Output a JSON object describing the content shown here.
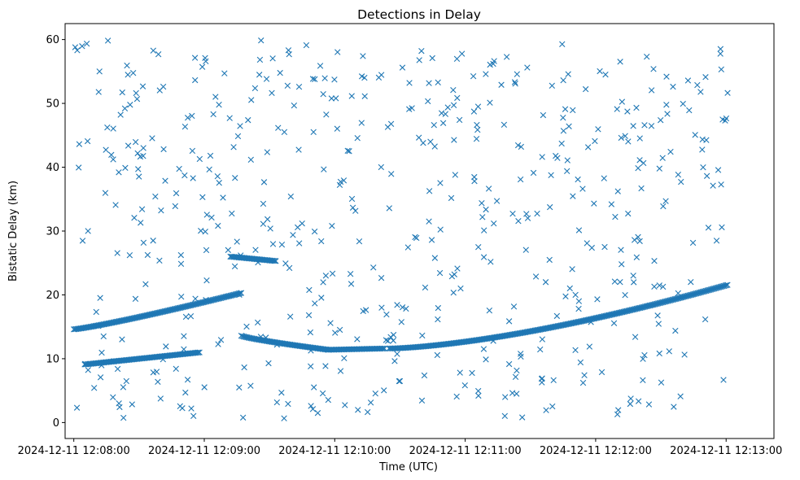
{
  "chart_data": {
    "type": "scatter",
    "title": "Detections in Delay",
    "xlabel": "Time (UTC)",
    "ylabel": "Bistatic Delay (km)",
    "marker": "x",
    "color": "#1f77b4",
    "xlim": [
      -4,
      322
    ],
    "ylim": [
      -2.5,
      62.5
    ],
    "x_unit": "seconds since 2024-12-11 12:08:00",
    "x_ticks": [
      {
        "value": 0,
        "label": "2024-12-11 12:08:00"
      },
      {
        "value": 60,
        "label": "2024-12-11 12:09:00"
      },
      {
        "value": 120,
        "label": "2024-12-11 12:10:00"
      },
      {
        "value": 180,
        "label": "2024-12-11 12:11:00"
      },
      {
        "value": 240,
        "label": "2024-12-11 12:12:00"
      },
      {
        "value": 300,
        "label": "2024-12-11 12:13:00"
      }
    ],
    "y_ticks": [
      {
        "value": 0,
        "label": "0"
      },
      {
        "value": 10,
        "label": "10"
      },
      {
        "value": 20,
        "label": "20"
      },
      {
        "value": 30,
        "label": "30"
      },
      {
        "value": 40,
        "label": "40"
      },
      {
        "value": 50,
        "label": "50"
      },
      {
        "value": 60,
        "label": "60"
      }
    ],
    "tracks": [
      {
        "name": "rising-track-1",
        "t_start": 0,
        "t_end": 77,
        "delay_start": 14.6,
        "delay_end": 20.3,
        "curve": 1.15
      },
      {
        "name": "lower-track",
        "t_start": 5,
        "t_end": 58,
        "delay_start": 9.1,
        "delay_end": 11.0,
        "curve": 1.0
      },
      {
        "name": "short-track",
        "t_start": 72,
        "t_end": 93,
        "delay_start": 26.0,
        "delay_end": 25.3,
        "curve": 1.0
      },
      {
        "name": "falling-track",
        "t_start": 77,
        "t_end": 117,
        "delay_start": 13.6,
        "delay_end": 11.4,
        "curve": 0.8
      },
      {
        "name": "flat-track",
        "t_start": 117,
        "t_end": 143,
        "delay_start": 11.4,
        "delay_end": 11.6,
        "curve": 1.0
      },
      {
        "name": "rising-track-2",
        "t_start": 145,
        "t_end": 301,
        "delay_start": 11.6,
        "delay_end": 21.6,
        "curve": 1.5
      }
    ],
    "noise_count": 560,
    "noise_delay_range": [
      0.5,
      60.0
    ],
    "noise_time_range": [
      0,
      301
    ]
  }
}
